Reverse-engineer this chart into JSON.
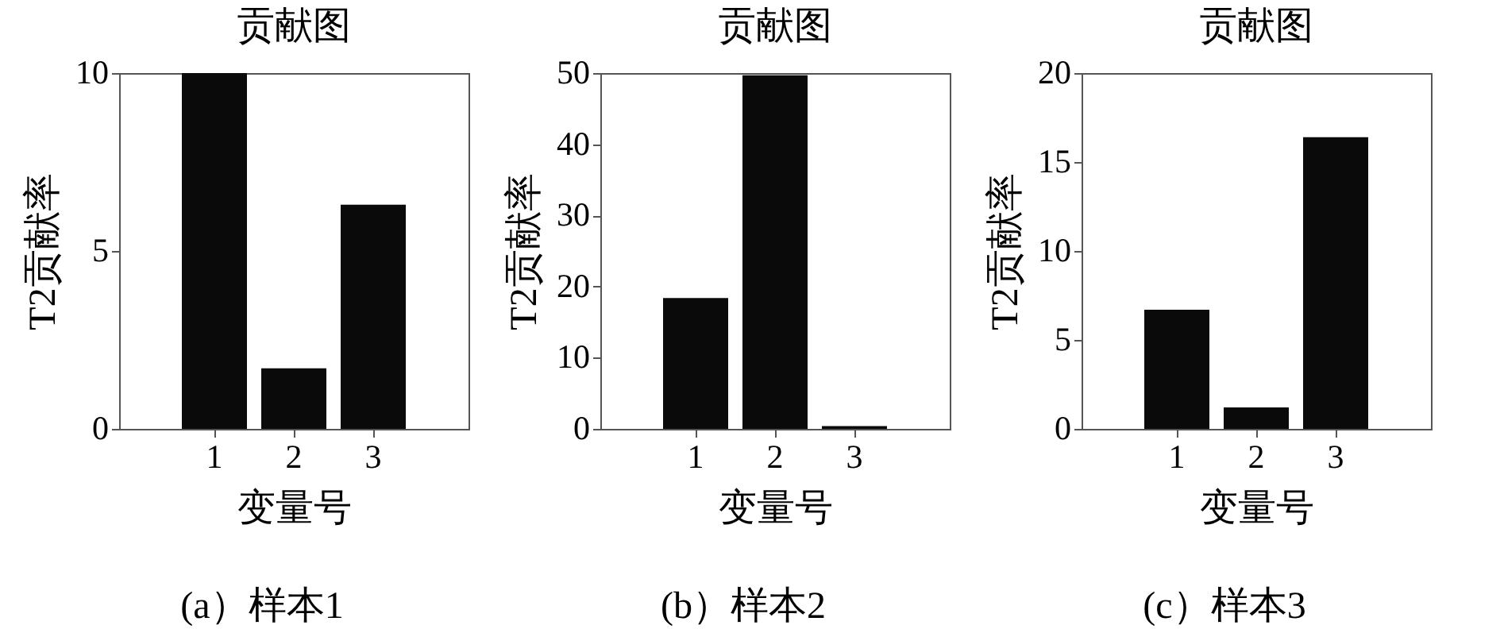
{
  "chart_data": [
    {
      "type": "bar",
      "title": "贡献图",
      "xlabel": "变量号",
      "ylabel": "T2贡献率",
      "categories": [
        "1",
        "2",
        "3"
      ],
      "values": [
        10,
        1.7,
        6.3
      ],
      "color": "#0a0a0a",
      "ylim": [
        0,
        10
      ],
      "yticks": [
        0,
        5,
        10
      ],
      "annotations": [
        "(a）样本1"
      ]
    },
    {
      "type": "bar",
      "title": "贡献图",
      "xlabel": "变量号",
      "ylabel": "T2贡献率",
      "categories": [
        "1",
        "2",
        "3"
      ],
      "values": [
        18.4,
        49.7,
        0.4
      ],
      "color": "#0a0a0a",
      "ylim": [
        0,
        50
      ],
      "yticks": [
        0,
        10,
        20,
        30,
        40,
        50
      ],
      "annotations": [
        "(b）样本2"
      ]
    },
    {
      "type": "bar",
      "title": "贡献图",
      "xlabel": "变量号",
      "ylabel": "T2贡献率",
      "categories": [
        "1",
        "2",
        "3"
      ],
      "values": [
        6.7,
        1.2,
        16.4
      ],
      "color": "#0a0a0a",
      "ylim": [
        0,
        20
      ],
      "yticks": [
        0,
        5,
        10,
        15,
        20
      ],
      "annotations": [
        "(c）样本3"
      ]
    }
  ]
}
